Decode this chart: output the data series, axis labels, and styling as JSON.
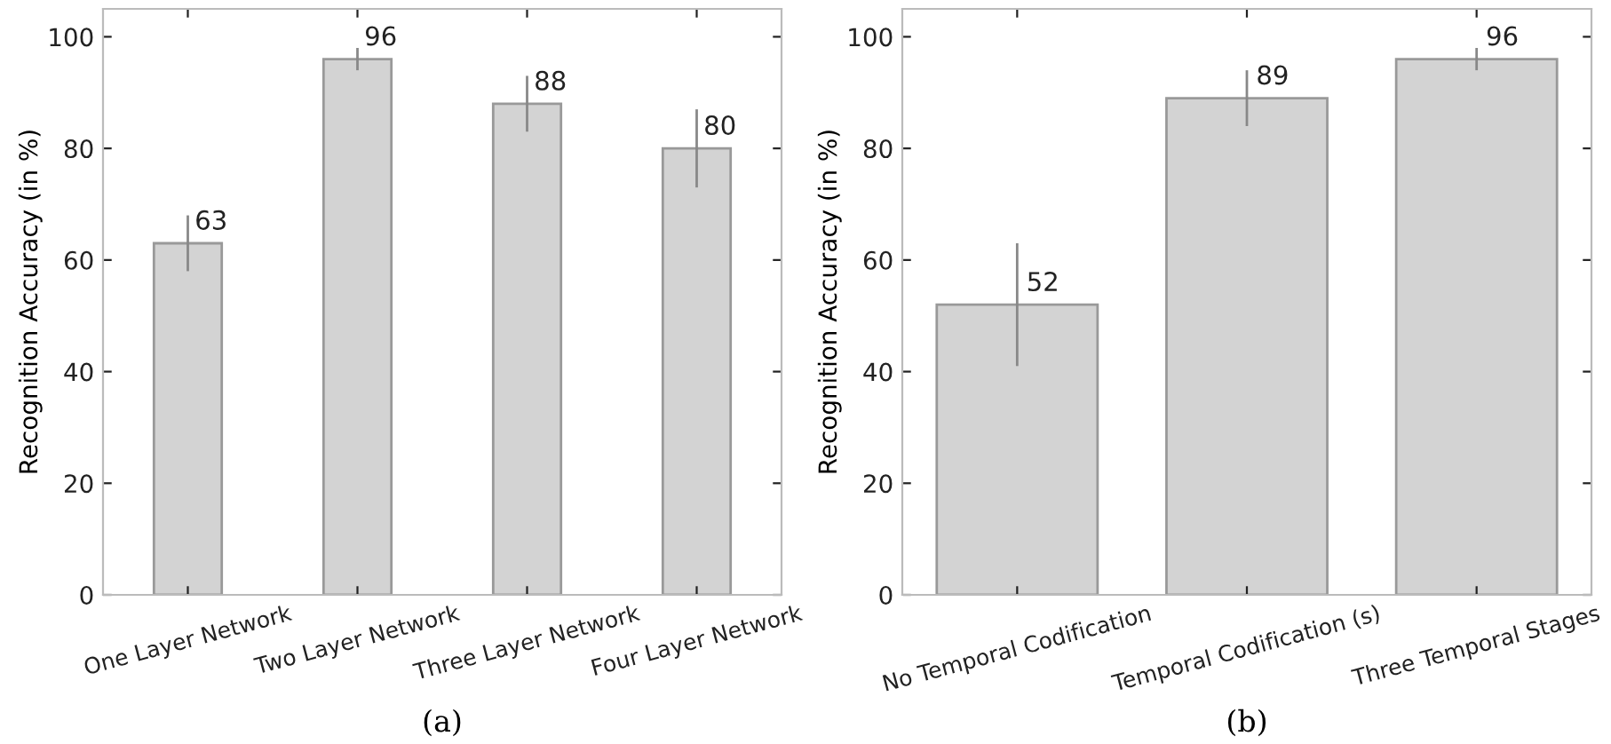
{
  "chart_data": [
    {
      "type": "bar",
      "ylabel": "Recognition Accuracy (in %)",
      "categories": [
        "One Layer Network",
        "Two Layer Network",
        "Three Layer Network",
        "Four Layer Network"
      ],
      "values": [
        63,
        96,
        88,
        80
      ],
      "errors": [
        5,
        2,
        5,
        7
      ],
      "color": "#d3d3d3",
      "ylim": [
        0,
        105
      ],
      "yticks": [
        0,
        20,
        40,
        60,
        80,
        100
      ],
      "data_labels": true,
      "grid": false,
      "annotations": [
        "(a)"
      ]
    },
    {
      "type": "bar",
      "ylabel": "Recognition Accuracy (in %)",
      "categories": [
        "No Temporal Codification",
        "Temporal Codification (s)",
        "Three Temporal Stages"
      ],
      "values": [
        52,
        89,
        96
      ],
      "errors": [
        11,
        5,
        2
      ],
      "color": "#d3d3d3",
      "ylim": [
        0,
        105
      ],
      "yticks": [
        0,
        20,
        40,
        60,
        80,
        100
      ],
      "data_labels": true,
      "grid": false,
      "annotations": [
        "(b)"
      ]
    }
  ]
}
